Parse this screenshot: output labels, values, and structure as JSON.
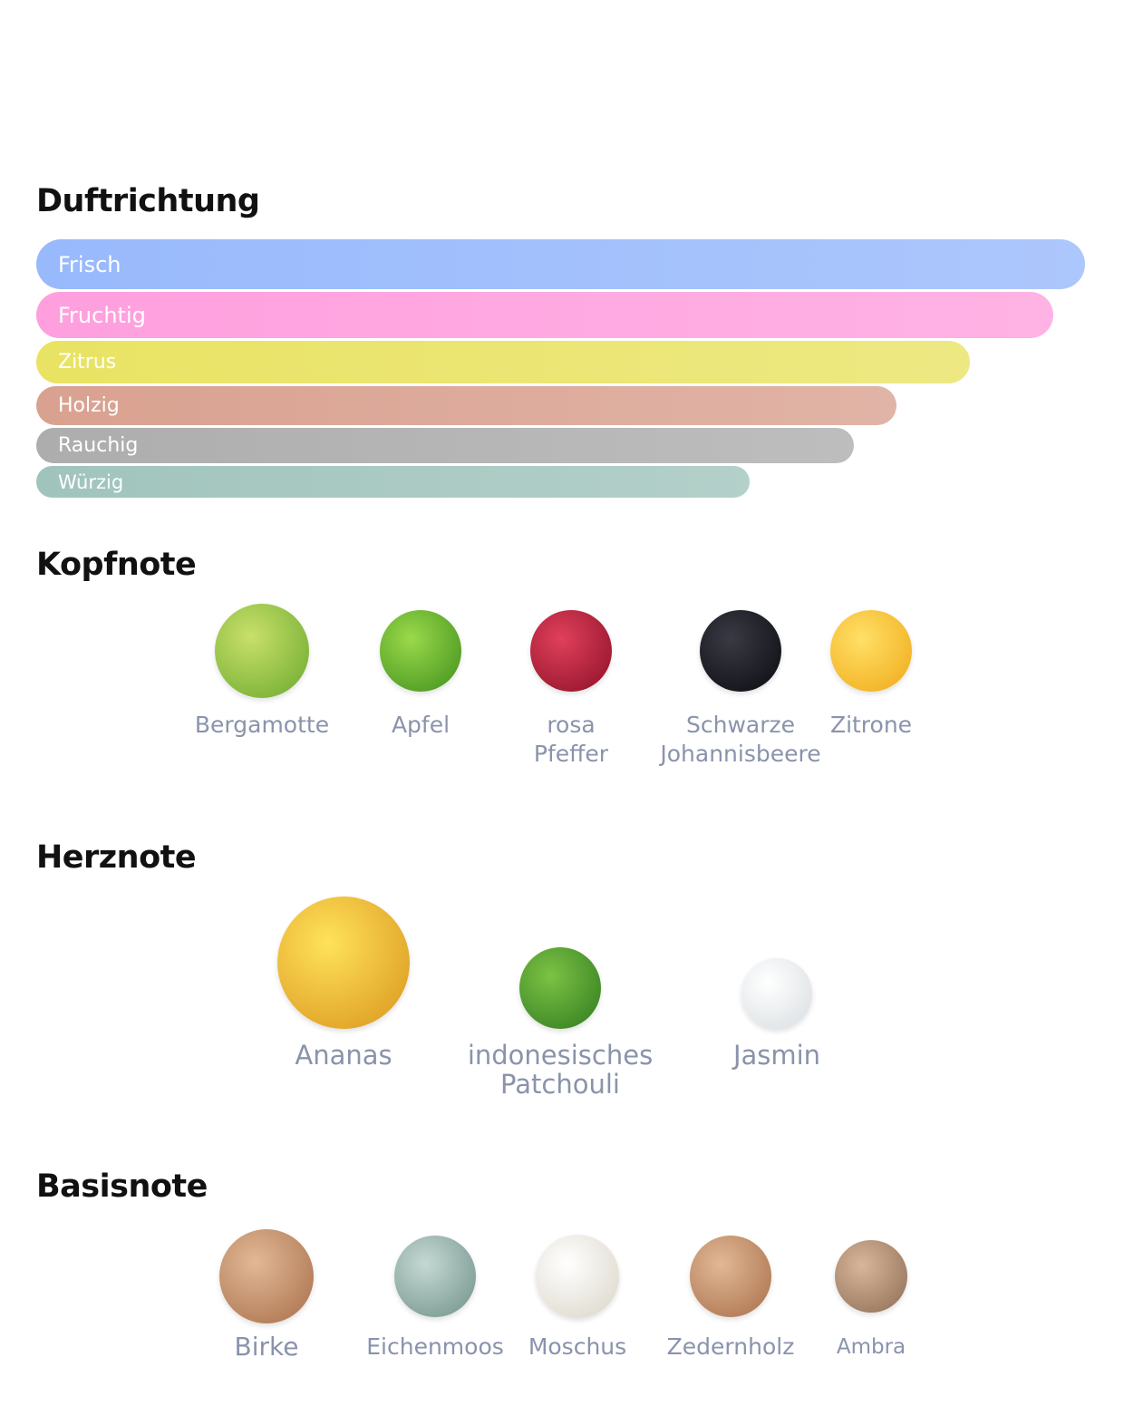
{
  "fragrance_profile": {
    "title": "Duftrichtung",
    "accords": [
      {
        "name": "Frisch",
        "value": 100,
        "color": "#98b9fc"
      },
      {
        "name": "Fruchtig",
        "value": 97,
        "color": "#ff9fde"
      },
      {
        "name": "Zitrus",
        "value": 89,
        "color": "#e9e363"
      },
      {
        "name": "Holzig",
        "value": 82,
        "color": "#d9a190"
      },
      {
        "name": "Rauchig",
        "value": 78,
        "color": "#adadad"
      },
      {
        "name": "Würzig",
        "value": 68,
        "color": "#a0c4bc"
      }
    ]
  },
  "top_notes": {
    "title": "Kopfnote",
    "items": [
      "Bergamotte",
      "Apfel",
      "rosa Pfeffer",
      "Schwarze Johannisbeere",
      "Zitrone"
    ]
  },
  "heart_notes": {
    "title": "Herznote",
    "items": [
      "Ananas",
      "indonesisches Patchouli",
      "Jasmin"
    ]
  },
  "base_notes": {
    "title": "Basisnote",
    "items": [
      "Birke",
      "Eichenmoos",
      "Moschus",
      "Zedernholz",
      "Ambra"
    ]
  }
}
